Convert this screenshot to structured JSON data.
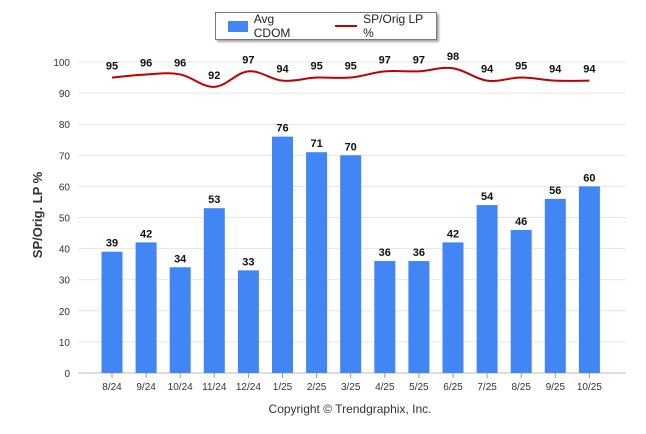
{
  "legend": {
    "bar_label": "Avg CDOM",
    "line_label": "SP/Orig LP %"
  },
  "copyright": "Copyright © Trendgraphix, Inc.",
  "chart_data": {
    "type": "bar",
    "categories": [
      "8/24",
      "9/24",
      "10/24",
      "11/24",
      "12/24",
      "1/25",
      "2/25",
      "3/25",
      "4/25",
      "5/25",
      "6/25",
      "7/25",
      "8/25",
      "9/25",
      "10/25"
    ],
    "series": [
      {
        "name": "Avg CDOM",
        "type": "bar",
        "color": "#4285f4",
        "values": [
          39,
          42,
          34,
          53,
          33,
          76,
          71,
          70,
          36,
          36,
          42,
          54,
          46,
          56,
          60
        ]
      },
      {
        "name": "SP/Orig LP %",
        "type": "line",
        "color": "#c00000",
        "values": [
          95,
          96,
          96,
          92,
          97,
          94,
          95,
          95,
          97,
          97,
          98,
          94,
          95,
          94,
          94
        ]
      }
    ],
    "ylabel": "SP/Orig. LP %",
    "xlabel": "",
    "ylim": [
      0,
      100
    ],
    "yticks": [
      0,
      10,
      20,
      30,
      40,
      50,
      60,
      70,
      80,
      90,
      100
    ],
    "grid": true,
    "legend_position": "top-center"
  }
}
